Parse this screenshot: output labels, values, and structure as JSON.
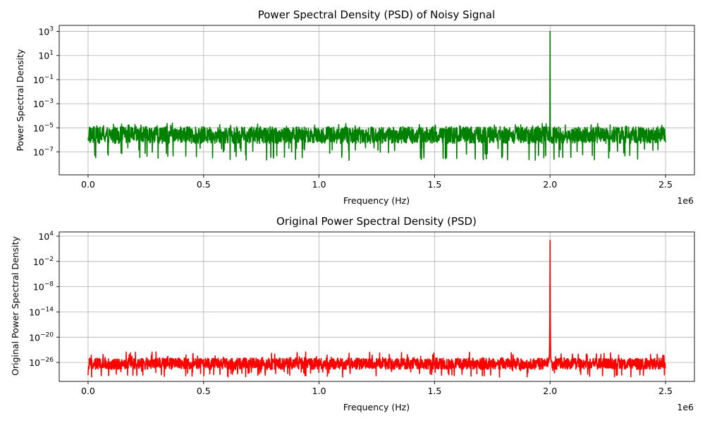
{
  "chart_data": [
    {
      "type": "line",
      "title": "Power Spectral Density (PSD) of Noisy Signal",
      "xlabel": "Frequency (Hz)",
      "ylabel": "Power Spectral Density",
      "x_offset_label": "1e6",
      "y_scale": "log",
      "x_ticks": [
        "0.0",
        "0.5",
        "1.0",
        "1.5",
        "2.0",
        "2.5"
      ],
      "y_ticks": [
        {
          "base": "10",
          "exp": "3"
        },
        {
          "base": "10",
          "exp": "1"
        },
        {
          "base": "10",
          "exp": "−1"
        },
        {
          "base": "10",
          "exp": "−3"
        },
        {
          "base": "10",
          "exp": "−5"
        },
        {
          "base": "10",
          "exp": "−7"
        }
      ],
      "xlim": [
        -125000,
        2625000
      ],
      "ylim_log10": [
        -8.9,
        3.5
      ],
      "grid": true,
      "color": "#008000",
      "series": [
        {
          "x_range": [
            0,
            2500000
          ],
          "noise_floor_log10": -5.6,
          "noise_spread_log10": [
            -7.7,
            -4.6
          ],
          "peaks": [
            {
              "x": 2000000,
              "y": 1000
            }
          ]
        }
      ]
    },
    {
      "type": "line",
      "title": "Original Power Spectral Density (PSD)",
      "xlabel": "Frequency (Hz)",
      "ylabel": "Original Power Spectral Density",
      "x_offset_label": "1e6",
      "y_scale": "log",
      "x_ticks": [
        "0.0",
        "0.5",
        "1.0",
        "1.5",
        "2.0",
        "2.5"
      ],
      "y_ticks": [
        {
          "base": "10",
          "exp": "4"
        },
        {
          "base": "10",
          "exp": "−2"
        },
        {
          "base": "10",
          "exp": "−8"
        },
        {
          "base": "10",
          "exp": "−14"
        },
        {
          "base": "10",
          "exp": "−20"
        },
        {
          "base": "10",
          "exp": "−26"
        }
      ],
      "xlim": [
        -125000,
        2625000
      ],
      "ylim_log10": [
        -30.5,
        5.0
      ],
      "grid": true,
      "color": "#ff0000",
      "series": [
        {
          "x_range": [
            0,
            2500000
          ],
          "noise_floor_log10": -26.3,
          "noise_spread_log10": [
            -29.5,
            -23.5
          ],
          "peaks": [
            {
              "x": 2000000,
              "y": 1000
            }
          ]
        }
      ]
    }
  ]
}
